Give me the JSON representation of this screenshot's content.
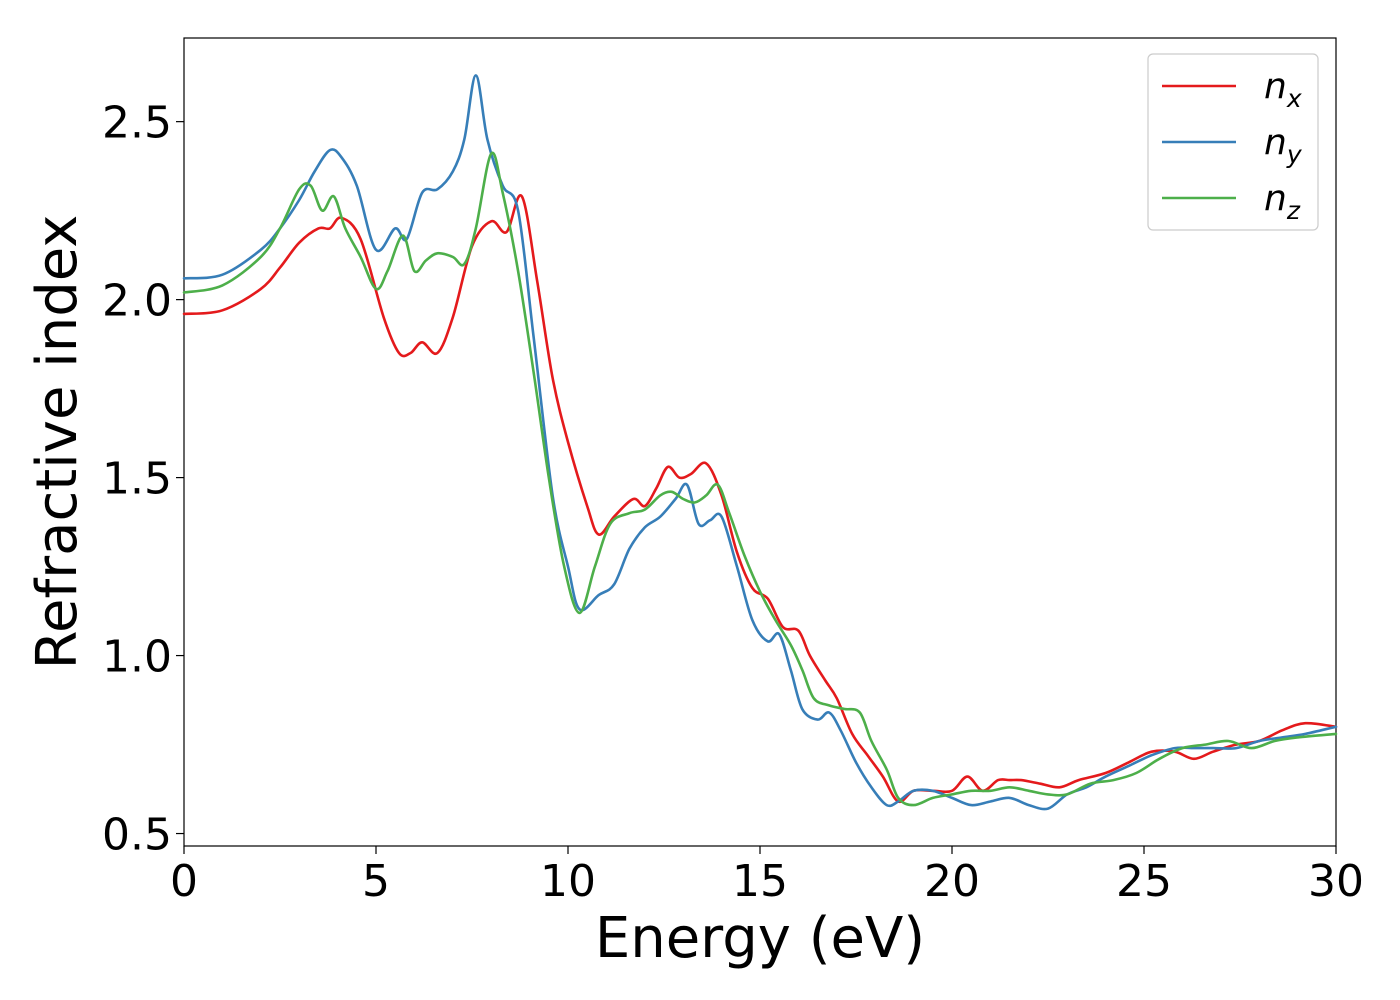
{
  "chart_data": {
    "type": "line",
    "xlabel": "Energy (eV)",
    "ylabel": "Refractive index",
    "xlim": [
      0,
      30
    ],
    "ylim": [
      0.465,
      2.735
    ],
    "x_ticks": [
      "0",
      "5",
      "10",
      "15",
      "20",
      "25",
      "30"
    ],
    "y_ticks": [
      "0.5",
      "1.0",
      "1.5",
      "2.0",
      "2.5"
    ],
    "grid": false,
    "legend_position": "top-right",
    "series": [
      {
        "name": "n",
        "subscript": "x",
        "color": "#e41a1c",
        "x": [
          0,
          1,
          2,
          2.5,
          3,
          3.5,
          3.8,
          4.1,
          4.6,
          5.2,
          5.6,
          5.9,
          6.2,
          6.6,
          7.0,
          7.5,
          8.0,
          8.4,
          8.8,
          9.2,
          9.6,
          10.0,
          10.5,
          10.8,
          11.2,
          11.7,
          12.0,
          12.3,
          12.6,
          12.9,
          13.2,
          13.6,
          14.0,
          14.4,
          14.8,
          15.2,
          15.6,
          16.0,
          16.3,
          16.7,
          17.0,
          17.4,
          17.8,
          18.2,
          18.6,
          19.0,
          19.5,
          20.0,
          20.4,
          20.8,
          21.2,
          21.5,
          21.8,
          22.3,
          22.8,
          23.3,
          24.0,
          24.6,
          25.2,
          25.8,
          26.3,
          26.8,
          27.4,
          28.0,
          28.6,
          29.2,
          30.0
        ],
        "y": [
          1.96,
          1.97,
          2.03,
          2.09,
          2.16,
          2.2,
          2.2,
          2.23,
          2.17,
          1.95,
          1.85,
          1.85,
          1.88,
          1.85,
          1.95,
          2.15,
          2.22,
          2.19,
          2.29,
          2.05,
          1.78,
          1.6,
          1.42,
          1.34,
          1.39,
          1.44,
          1.42,
          1.47,
          1.53,
          1.5,
          1.51,
          1.54,
          1.45,
          1.29,
          1.19,
          1.16,
          1.08,
          1.07,
          1.0,
          0.93,
          0.88,
          0.78,
          0.72,
          0.66,
          0.59,
          0.62,
          0.62,
          0.62,
          0.66,
          0.62,
          0.65,
          0.65,
          0.65,
          0.64,
          0.63,
          0.65,
          0.67,
          0.7,
          0.73,
          0.73,
          0.71,
          0.73,
          0.75,
          0.76,
          0.79,
          0.81,
          0.8
        ]
      },
      {
        "name": "n",
        "subscript": "y",
        "color": "#377eb8",
        "x": [
          0,
          1,
          2,
          2.5,
          3,
          3.4,
          3.8,
          4.1,
          4.5,
          5.0,
          5.5,
          5.8,
          6.2,
          6.6,
          7.0,
          7.3,
          7.6,
          7.9,
          8.3,
          8.7,
          9.1,
          9.6,
          10.0,
          10.3,
          10.8,
          11.2,
          11.6,
          12.0,
          12.4,
          12.8,
          13.1,
          13.4,
          13.7,
          14.0,
          14.4,
          14.8,
          15.2,
          15.5,
          15.8,
          16.1,
          16.5,
          16.8,
          17.1,
          17.5,
          17.9,
          18.3,
          18.6,
          19.0,
          19.5,
          20.0,
          20.5,
          21.0,
          21.5,
          22.0,
          22.5,
          23.0,
          23.5,
          24.0,
          24.6,
          25.2,
          25.8,
          26.3,
          26.8,
          27.4,
          28.0,
          28.6,
          29.2,
          30.0
        ],
        "y": [
          2.06,
          2.07,
          2.14,
          2.2,
          2.28,
          2.36,
          2.42,
          2.4,
          2.32,
          2.14,
          2.2,
          2.17,
          2.3,
          2.31,
          2.36,
          2.45,
          2.63,
          2.45,
          2.32,
          2.25,
          1.9,
          1.45,
          1.25,
          1.13,
          1.17,
          1.2,
          1.3,
          1.36,
          1.39,
          1.44,
          1.48,
          1.37,
          1.38,
          1.39,
          1.25,
          1.1,
          1.04,
          1.06,
          0.96,
          0.85,
          0.82,
          0.84,
          0.79,
          0.7,
          0.63,
          0.58,
          0.59,
          0.62,
          0.62,
          0.6,
          0.58,
          0.59,
          0.6,
          0.58,
          0.57,
          0.61,
          0.63,
          0.66,
          0.69,
          0.72,
          0.74,
          0.74,
          0.74,
          0.74,
          0.76,
          0.77,
          0.78,
          0.8
        ]
      },
      {
        "name": "n",
        "subscript": "z",
        "color": "#4daf4a",
        "x": [
          0,
          1,
          2,
          2.5,
          3,
          3.3,
          3.6,
          3.9,
          4.2,
          4.6,
          5.0,
          5.3,
          5.7,
          6.0,
          6.3,
          6.6,
          7.0,
          7.3,
          7.6,
          8.0,
          8.3,
          8.7,
          9.1,
          9.5,
          9.9,
          10.3,
          10.7,
          11.1,
          11.6,
          12.0,
          12.4,
          12.7,
          13.0,
          13.3,
          13.6,
          13.9,
          14.2,
          14.6,
          15.0,
          15.4,
          15.8,
          16.1,
          16.4,
          16.8,
          17.2,
          17.6,
          17.9,
          18.3,
          18.6,
          19.0,
          19.5,
          20.0,
          20.5,
          21.0,
          21.5,
          22.0,
          22.5,
          23.0,
          23.6,
          24.2,
          24.8,
          25.4,
          26.0,
          26.6,
          27.2,
          27.8,
          28.4,
          29.0,
          30.0
        ],
        "y": [
          2.02,
          2.04,
          2.12,
          2.2,
          2.31,
          2.32,
          2.25,
          2.29,
          2.2,
          2.12,
          2.03,
          2.08,
          2.18,
          2.08,
          2.11,
          2.13,
          2.12,
          2.1,
          2.2,
          2.41,
          2.3,
          2.08,
          1.8,
          1.5,
          1.25,
          1.12,
          1.25,
          1.37,
          1.4,
          1.41,
          1.45,
          1.46,
          1.44,
          1.43,
          1.45,
          1.48,
          1.4,
          1.28,
          1.18,
          1.1,
          1.03,
          0.96,
          0.88,
          0.86,
          0.85,
          0.84,
          0.76,
          0.68,
          0.6,
          0.58,
          0.6,
          0.61,
          0.62,
          0.62,
          0.63,
          0.62,
          0.61,
          0.61,
          0.64,
          0.65,
          0.67,
          0.71,
          0.74,
          0.75,
          0.76,
          0.74,
          0.76,
          0.77,
          0.78
        ]
      }
    ]
  }
}
